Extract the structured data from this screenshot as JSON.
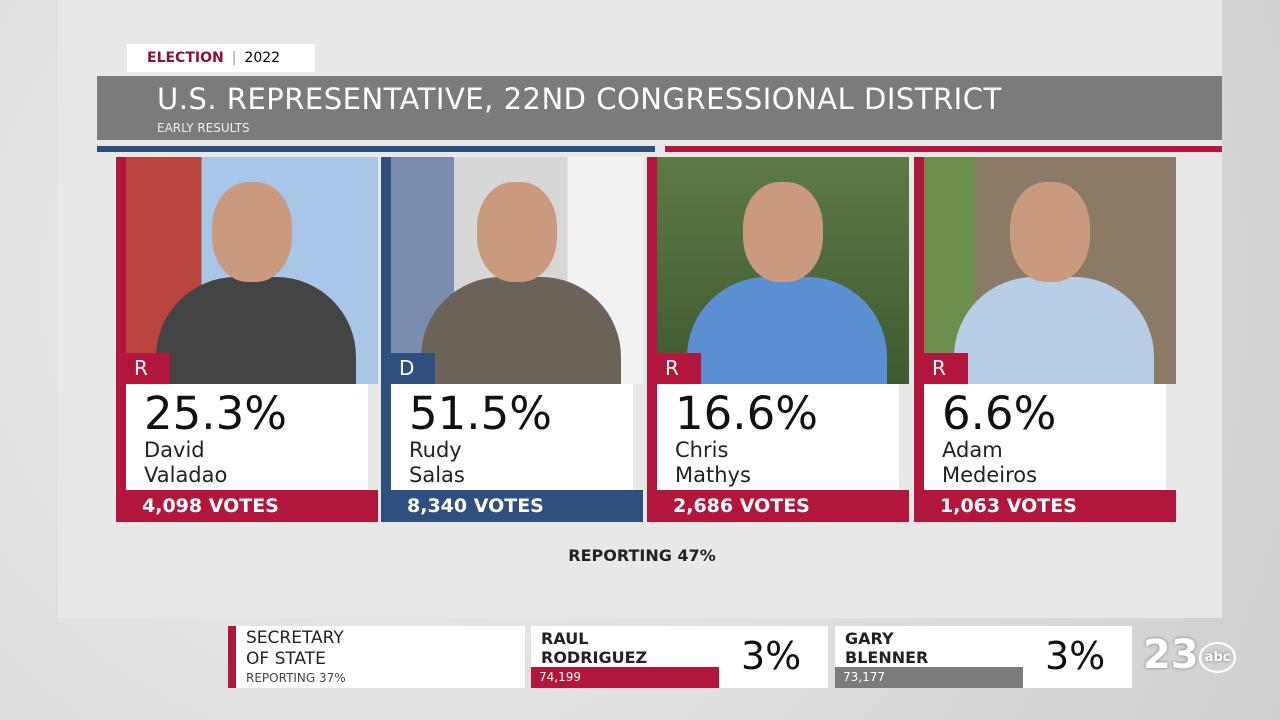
{
  "header": {
    "tag": "ELECTION",
    "year": "2022",
    "title": "U.S. REPRESENTATIVE, 22ND CONGRESSIONAL DISTRICT",
    "subtitle": "EARLY RESULTS"
  },
  "candidates": [
    {
      "party": "R",
      "percent": "25.3%",
      "first": "David",
      "last": "Valadao",
      "votes": "4,098 VOTES"
    },
    {
      "party": "D",
      "percent": "51.5%",
      "first": "Rudy",
      "last": "Salas",
      "votes": "8,340 VOTES"
    },
    {
      "party": "R",
      "percent": "16.6%",
      "first": "Chris",
      "last": "Mathys",
      "votes": "2,686 VOTES"
    },
    {
      "party": "R",
      "percent": "6.6%",
      "first": "Adam",
      "last": "Medeiros",
      "votes": "1,063 VOTES"
    }
  ],
  "reporting": "REPORTING 47%",
  "ticker": {
    "race_line1": "SECRETARY",
    "race_line2": "OF STATE",
    "reporting": "REPORTING 37%",
    "entries": [
      {
        "first": "RAUL",
        "last": "RODRIGUEZ",
        "percent": "3%",
        "votes": "74,199"
      },
      {
        "first": "GARY",
        "last": "BLENNER",
        "percent": "3%",
        "votes": "73,177"
      }
    ]
  },
  "logo": {
    "number": "23",
    "network": "abc"
  }
}
